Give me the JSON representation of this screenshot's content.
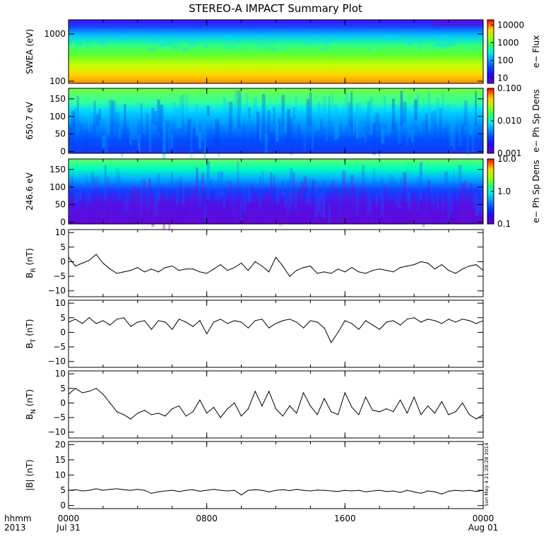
{
  "title": "STEREO-A IMPACT Summary Plot",
  "colors": {
    "background": "#ffffff",
    "line": "#000000"
  },
  "x_axis": {
    "corner_top": "hhmm",
    "corner_bottom": "2013",
    "domain_hours": [
      0,
      24
    ],
    "ticks": [
      {
        "value": 0,
        "top": "0000",
        "bottom": "Jul 31"
      },
      {
        "value": 8,
        "top": "0800",
        "bottom": ""
      },
      {
        "value": 16,
        "top": "1600",
        "bottom": ""
      },
      {
        "value": 24,
        "top": "0000",
        "bottom": "Aug 01"
      }
    ]
  },
  "timestamp": "Sun May  4 21:28:28 2014",
  "chart_data": [
    {
      "id": "swea",
      "type": "heatmap",
      "ylabel": "SWEA (eV)",
      "yscale": "log",
      "ylim": [
        90,
        2000
      ],
      "yticks": [
        "100",
        "1000"
      ],
      "ytick_values": [
        100,
        1000
      ],
      "colorbar": {
        "label": "e− Flux",
        "scale": "log",
        "range": [
          5,
          20000
        ],
        "ticks": [
          "10",
          "100",
          "1000",
          "10000"
        ],
        "tick_values": [
          10,
          100,
          1000,
          10000
        ]
      }
    },
    {
      "id": "pad650",
      "type": "heatmap",
      "ylabel": "650.7 eV",
      "yscale": "linear",
      "ylim": [
        -5,
        180
      ],
      "yticks": [
        "0",
        "50",
        "100",
        "150"
      ],
      "ytick_values": [
        0,
        50,
        100,
        150
      ],
      "colorbar": {
        "label": "e− Ph Sp Dens",
        "scale": "log",
        "range": [
          0.001,
          0.1
        ],
        "ticks": [
          "0.001",
          "0.010",
          "0.100"
        ],
        "tick_values": [
          0.001,
          0.01,
          0.1
        ]
      }
    },
    {
      "id": "pad246",
      "type": "heatmap",
      "ylabel": "246.6 eV",
      "yscale": "linear",
      "ylim": [
        -5,
        180
      ],
      "yticks": [
        "0",
        "50",
        "100",
        "150"
      ],
      "ytick_values": [
        0,
        50,
        100,
        150
      ],
      "colorbar": {
        "label": "e− Ph Sp Dens",
        "scale": "log",
        "range": [
          0.1,
          10
        ],
        "ticks": [
          "0.1",
          "1.0",
          "10.0"
        ],
        "tick_values": [
          0.1,
          1,
          10
        ]
      }
    },
    {
      "id": "br",
      "type": "line",
      "ylabel": "B",
      "ylabel_sub": "R",
      "ylabel_unit": " (nT)",
      "ylim": [
        -12,
        11
      ],
      "yticks": [
        "−10",
        "−5",
        "0",
        "5",
        "10"
      ],
      "ytick_values": [
        -10,
        -5,
        0,
        5,
        10
      ],
      "x": [
        0,
        0.4,
        0.8,
        1.2,
        1.6,
        2.0,
        2.4,
        2.8,
        3.2,
        3.6,
        4.0,
        4.4,
        4.8,
        5.2,
        5.6,
        6.0,
        6.4,
        6.8,
        7.2,
        7.6,
        8.0,
        8.4,
        8.8,
        9.2,
        9.6,
        10.0,
        10.4,
        10.8,
        11.2,
        11.6,
        12.0,
        12.4,
        12.8,
        13.2,
        13.6,
        14.0,
        14.4,
        14.8,
        15.2,
        15.6,
        16.0,
        16.4,
        16.8,
        17.2,
        17.6,
        18.0,
        18.4,
        18.8,
        19.2,
        19.6,
        20.0,
        20.4,
        20.8,
        21.2,
        21.6,
        22.0,
        22.4,
        22.8,
        23.2,
        23.6,
        24.0
      ],
      "y": [
        1.5,
        -1.5,
        -0.5,
        0.5,
        2.5,
        -0.5,
        -2.5,
        -4.0,
        -3.5,
        -3.0,
        -2.0,
        -3.5,
        -2.5,
        -3.5,
        -2.0,
        -1.5,
        -3.0,
        -2.5,
        -2.5,
        -3.5,
        -4.0,
        -2.5,
        -1.0,
        -3.0,
        -2.0,
        -0.5,
        -3.0,
        0.0,
        -1.5,
        -3.5,
        1.5,
        -1.5,
        -5.0,
        -3.0,
        -2.0,
        -1.5,
        -4.0,
        -3.5,
        -4.0,
        -2.5,
        -3.5,
        -2.0,
        -3.5,
        -4.0,
        -3.0,
        -2.5,
        -3.0,
        -3.5,
        -2.0,
        -1.5,
        -1.0,
        0.0,
        -0.5,
        -2.5,
        -1.0,
        -3.0,
        -4.0,
        -2.5,
        -1.5,
        -1.0,
        -3.0
      ]
    },
    {
      "id": "bt",
      "type": "line",
      "ylabel": "B",
      "ylabel_sub": "T",
      "ylabel_unit": " (nT)",
      "ylim": [
        -12,
        11
      ],
      "yticks": [
        "−10",
        "−5",
        "0",
        "5",
        "10"
      ],
      "ytick_values": [
        -10,
        -5,
        0,
        5,
        10
      ],
      "x": [
        0,
        0.4,
        0.8,
        1.2,
        1.6,
        2.0,
        2.4,
        2.8,
        3.2,
        3.6,
        4.0,
        4.4,
        4.8,
        5.2,
        5.6,
        6.0,
        6.4,
        6.8,
        7.2,
        7.6,
        8.0,
        8.4,
        8.8,
        9.2,
        9.6,
        10.0,
        10.4,
        10.8,
        11.2,
        11.6,
        12.0,
        12.4,
        12.8,
        13.2,
        13.6,
        14.0,
        14.4,
        14.8,
        15.2,
        15.6,
        16.0,
        16.4,
        16.8,
        17.2,
        17.6,
        18.0,
        18.4,
        18.8,
        19.2,
        19.6,
        20.0,
        20.4,
        20.8,
        21.2,
        21.6,
        22.0,
        22.4,
        22.8,
        23.2,
        23.6,
        24.0
      ],
      "y": [
        3.5,
        4.5,
        3.0,
        5.0,
        3.0,
        4.0,
        2.5,
        4.5,
        5.0,
        2.0,
        3.5,
        4.0,
        1.0,
        4.0,
        3.5,
        1.0,
        4.5,
        3.5,
        2.0,
        4.0,
        -0.5,
        3.5,
        4.5,
        3.0,
        4.0,
        3.5,
        1.5,
        4.0,
        4.5,
        1.5,
        3.0,
        4.0,
        4.5,
        3.5,
        1.5,
        4.0,
        3.5,
        1.5,
        -3.5,
        0.0,
        4.0,
        3.0,
        1.0,
        4.0,
        2.5,
        1.0,
        3.5,
        4.0,
        2.5,
        4.5,
        5.0,
        3.5,
        4.5,
        4.0,
        3.0,
        4.5,
        3.5,
        4.5,
        4.0,
        3.0,
        4.0
      ]
    },
    {
      "id": "bn",
      "type": "line",
      "ylabel": "B",
      "ylabel_sub": "N",
      "ylabel_unit": " (nT)",
      "ylim": [
        -12,
        11
      ],
      "yticks": [
        "−10",
        "−5",
        "0",
        "5",
        "10"
      ],
      "ytick_values": [
        -10,
        -5,
        0,
        5,
        10
      ],
      "x": [
        0,
        0.4,
        0.8,
        1.2,
        1.6,
        2.0,
        2.4,
        2.8,
        3.2,
        3.6,
        4.0,
        4.4,
        4.8,
        5.2,
        5.6,
        6.0,
        6.4,
        6.8,
        7.2,
        7.6,
        8.0,
        8.4,
        8.8,
        9.2,
        9.6,
        10.0,
        10.4,
        10.8,
        11.2,
        11.6,
        12.0,
        12.4,
        12.8,
        13.2,
        13.6,
        14.0,
        14.4,
        14.8,
        15.2,
        15.6,
        16.0,
        16.4,
        16.8,
        17.2,
        17.6,
        18.0,
        18.4,
        18.8,
        19.2,
        19.6,
        20.0,
        20.4,
        20.8,
        21.2,
        21.6,
        22.0,
        22.4,
        22.8,
        23.2,
        23.6,
        24.0
      ],
      "y": [
        3.0,
        5.0,
        3.5,
        4.0,
        5.0,
        3.0,
        0.0,
        -3.0,
        -4.0,
        -5.5,
        -3.5,
        -2.5,
        -4.0,
        -3.5,
        -4.5,
        -2.0,
        -1.0,
        -4.5,
        -3.0,
        1.0,
        -3.5,
        -1.5,
        -5.0,
        -2.0,
        0.0,
        -4.5,
        -2.0,
        4.0,
        -1.0,
        4.0,
        -2.0,
        -4.5,
        -1.0,
        -3.5,
        3.5,
        -1.0,
        -4.0,
        1.5,
        -3.0,
        -4.0,
        3.5,
        -1.5,
        -4.0,
        2.0,
        -2.5,
        -3.0,
        -2.0,
        -3.0,
        1.0,
        -3.5,
        2.0,
        -4.0,
        -1.0,
        -3.5,
        0.5,
        -4.0,
        -3.0,
        0.0,
        -4.0,
        -5.5,
        -4.0
      ]
    },
    {
      "id": "btot",
      "type": "line",
      "ylabel": "|B| (nT)",
      "ylim": [
        -1,
        21
      ],
      "yticks": [
        "0",
        "5",
        "10",
        "15",
        "20"
      ],
      "ytick_values": [
        0,
        5,
        10,
        15,
        20
      ],
      "x": [
        0,
        0.4,
        0.8,
        1.2,
        1.6,
        2.0,
        2.4,
        2.8,
        3.2,
        3.6,
        4.0,
        4.4,
        4.8,
        5.2,
        5.6,
        6.0,
        6.4,
        6.8,
        7.2,
        7.6,
        8.0,
        8.4,
        8.8,
        9.2,
        9.6,
        10.0,
        10.4,
        10.8,
        11.2,
        11.6,
        12.0,
        12.4,
        12.8,
        13.2,
        13.6,
        14.0,
        14.4,
        14.8,
        15.2,
        15.6,
        16.0,
        16.4,
        16.8,
        17.2,
        17.6,
        18.0,
        18.4,
        18.8,
        19.2,
        19.6,
        20.0,
        20.4,
        20.8,
        21.2,
        21.6,
        22.0,
        22.4,
        22.8,
        23.2,
        23.6,
        24.0
      ],
      "y": [
        5.0,
        5.2,
        4.8,
        5.0,
        5.5,
        5.0,
        5.3,
        5.5,
        5.2,
        5.0,
        5.3,
        5.0,
        4.0,
        4.5,
        4.8,
        5.0,
        4.6,
        5.0,
        5.2,
        4.7,
        5.0,
        5.3,
        5.0,
        4.8,
        5.0,
        3.5,
        5.0,
        5.2,
        5.0,
        4.5,
        5.0,
        5.2,
        4.9,
        5.3,
        5.0,
        4.8,
        5.1,
        5.0,
        4.8,
        4.6,
        5.0,
        4.8,
        5.0,
        4.5,
        4.8,
        5.0,
        4.6,
        4.8,
        4.3,
        5.0,
        4.5,
        4.0,
        4.8,
        4.5,
        3.8,
        4.7,
        5.0,
        4.8,
        5.0,
        4.6,
        5.0
      ]
    }
  ]
}
